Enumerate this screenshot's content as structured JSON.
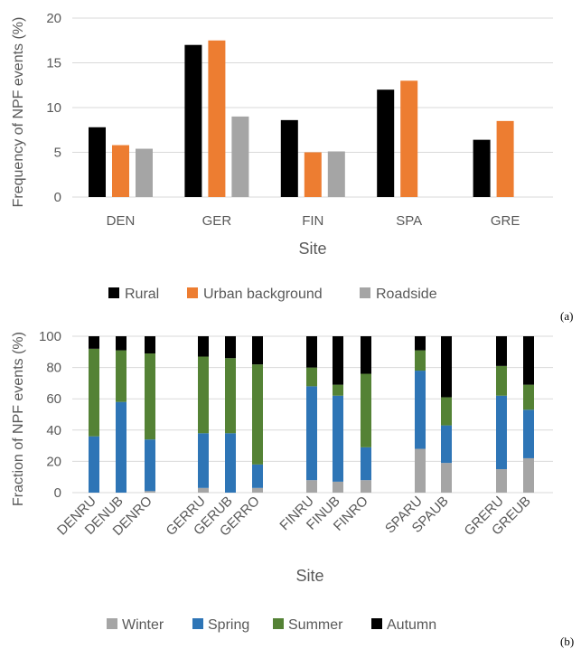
{
  "chart_data": [
    {
      "type": "bar",
      "panel_label": "(a)",
      "xlabel": "Site",
      "ylabel": "Frequency of NPF events (%)",
      "ylim": [
        0,
        20
      ],
      "yticks": [
        0,
        5,
        10,
        15,
        20
      ],
      "grid": true,
      "legend_position": "bottom",
      "categories": [
        "DEN",
        "GER",
        "FIN",
        "SPA",
        "GRE"
      ],
      "series": [
        {
          "name": "Rural",
          "color": "#000000",
          "values": [
            7.8,
            17.0,
            8.6,
            12.0,
            6.4
          ]
        },
        {
          "name": "Urban background",
          "color": "#ed7d31",
          "values": [
            5.8,
            17.5,
            5.0,
            13.0,
            8.5
          ]
        },
        {
          "name": "Roadside",
          "color": "#a5a5a5",
          "values": [
            5.4,
            9.0,
            5.1,
            null,
            null
          ]
        }
      ]
    },
    {
      "type": "bar",
      "stacked": true,
      "panel_label": "(b)",
      "xlabel": "Site",
      "ylabel": "Fraction of NPF events (%)",
      "ylim": [
        0,
        100
      ],
      "yticks": [
        0,
        20,
        40,
        60,
        80,
        100
      ],
      "grid": true,
      "legend_position": "bottom",
      "categories": [
        "DENRU",
        "DENUB",
        "DENRO",
        "GERRU",
        "GERUB",
        "GERRO",
        "FINRU",
        "FINUB",
        "FINRO",
        "SPARU",
        "SPAUB",
        "GRERU",
        "GREUB"
      ],
      "series": [
        {
          "name": "Winter",
          "color": "#a5a5a5",
          "values": [
            0,
            0,
            1,
            3,
            0,
            3,
            8,
            7,
            8,
            28,
            19,
            15,
            22
          ]
        },
        {
          "name": "Spring",
          "color": "#2e75b6",
          "values": [
            36,
            58,
            33,
            35,
            38,
            15,
            60,
            55,
            21,
            50,
            24,
            47,
            31
          ]
        },
        {
          "name": "Summer",
          "color": "#548235",
          "values": [
            56,
            33,
            55,
            49,
            48,
            64,
            12,
            7,
            47,
            13,
            18,
            19,
            16
          ]
        },
        {
          "name": "Autumn",
          "color": "#000000",
          "values": [
            8,
            9,
            11,
            13,
            14,
            18,
            20,
            31,
            24,
            9,
            39,
            19,
            31
          ]
        }
      ]
    }
  ]
}
